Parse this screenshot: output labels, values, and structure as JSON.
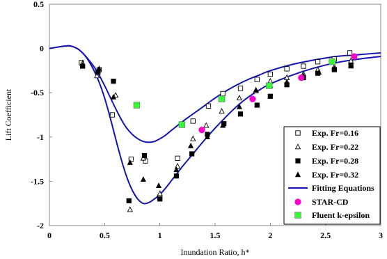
{
  "chart_data": {
    "type": "scatter",
    "title": "",
    "xlabel": "Inundation Ratio, h*",
    "ylabel": "Lift Coefficient",
    "xlim": [
      0,
      3
    ],
    "ylim": [
      -2,
      0.5
    ],
    "xticks": [
      "0",
      "0.5",
      "1",
      "1.5",
      "2",
      "2.5",
      "3"
    ],
    "yticks": [
      "0.5",
      "0",
      "-0.5",
      "-1",
      "-1.5",
      "-2"
    ],
    "grid": false,
    "legend_position": "bottom-right",
    "series": [
      {
        "name": "Exp. Fr=0.16",
        "marker": "square-open",
        "color": "#000000",
        "points": [
          [
            0.29,
            -0.16
          ],
          [
            0.45,
            -0.24
          ],
          [
            0.57,
            -0.75
          ],
          [
            0.74,
            -1.25
          ],
          [
            0.87,
            -1.27
          ],
          [
            1.0,
            -1.68
          ],
          [
            1.16,
            -1.24
          ],
          [
            1.3,
            -0.82
          ],
          [
            1.44,
            -0.65
          ],
          [
            1.57,
            -0.51
          ],
          [
            1.73,
            -0.45
          ],
          [
            1.88,
            -0.35
          ],
          [
            2.0,
            -0.29
          ],
          [
            2.15,
            -0.23
          ],
          [
            2.3,
            -0.2
          ],
          [
            2.43,
            -0.15
          ],
          [
            2.58,
            -0.12
          ],
          [
            2.72,
            -0.05
          ]
        ]
      },
      {
        "name": "Exp. Fr=0.22",
        "marker": "triangle-open",
        "color": "#000000",
        "points": [
          [
            0.3,
            -0.17
          ],
          [
            0.43,
            -0.31
          ],
          [
            0.6,
            -0.53
          ],
          [
            0.73,
            -1.82
          ],
          [
            0.85,
            -1.24
          ],
          [
            1.0,
            -1.64
          ],
          [
            1.16,
            -1.33
          ],
          [
            1.3,
            -1.02
          ],
          [
            1.42,
            -0.87
          ],
          [
            1.56,
            -0.71
          ],
          [
            1.72,
            -0.56
          ],
          [
            1.87,
            -0.48
          ],
          [
            2.0,
            -0.37
          ],
          [
            2.15,
            -0.33
          ],
          [
            2.3,
            -0.29
          ],
          [
            2.43,
            -0.24
          ],
          [
            2.58,
            -0.21
          ],
          [
            2.73,
            -0.14
          ]
        ]
      },
      {
        "name": "Exp. Fr=0.28",
        "marker": "square-filled",
        "color": "#000000",
        "points": [
          [
            0.3,
            -0.2
          ],
          [
            0.44,
            -0.27
          ],
          [
            0.58,
            -0.37
          ],
          [
            0.72,
            -1.72
          ],
          [
            0.86,
            -1.21
          ],
          [
            1.0,
            -1.7
          ],
          [
            1.15,
            -1.44
          ],
          [
            1.29,
            -1.19
          ],
          [
            1.43,
            -0.97
          ],
          [
            1.58,
            -0.85
          ],
          [
            1.73,
            -0.74
          ],
          [
            1.88,
            -0.64
          ],
          [
            2.0,
            -0.54
          ],
          [
            2.15,
            -0.41
          ],
          [
            2.3,
            -0.33
          ],
          [
            2.43,
            -0.28
          ],
          [
            2.58,
            -0.24
          ],
          [
            2.73,
            -0.19
          ]
        ]
      },
      {
        "name": "Exp. Fr=0.32",
        "marker": "triangle-filled",
        "color": "#000000",
        "points": [
          [
            0.3,
            -0.19
          ],
          [
            0.45,
            -0.23
          ],
          [
            0.58,
            -0.55
          ],
          [
            0.73,
            -1.29
          ],
          [
            0.85,
            -1.48
          ],
          [
            0.99,
            -1.55
          ],
          [
            1.15,
            -1.37
          ],
          [
            1.28,
            -1.1
          ],
          [
            1.43,
            -1.0
          ],
          [
            1.57,
            -0.87
          ],
          [
            1.72,
            -0.66
          ],
          [
            1.87,
            -0.47
          ],
          [
            2.0,
            -0.42
          ],
          [
            2.15,
            -0.38
          ],
          [
            2.3,
            -0.31
          ],
          [
            2.44,
            -0.27
          ],
          [
            2.58,
            -0.23
          ],
          [
            2.73,
            -0.2
          ]
        ]
      },
      {
        "name": "STAR-CD",
        "marker": "circle-filled",
        "color": "#ff00cc",
        "points": [
          [
            1.38,
            -0.92
          ],
          [
            1.84,
            -0.57
          ],
          [
            2.28,
            -0.33
          ],
          [
            2.76,
            -0.09
          ]
        ]
      },
      {
        "name": "Fluent k-epsilon",
        "marker": "square-filled-bordered",
        "color": "#33ff33",
        "points": [
          [
            0.79,
            -0.64
          ],
          [
            1.2,
            -0.86
          ],
          [
            1.56,
            -0.57
          ],
          [
            1.99,
            -0.42
          ],
          [
            2.56,
            -0.15
          ]
        ]
      }
    ],
    "fitting_equations": {
      "name": "Fitting Equations",
      "color": "#1414b4",
      "curves": [
        {
          "x": [
            0,
            0.1,
            0.18,
            0.25,
            0.3,
            0.35,
            0.4,
            0.45,
            0.5,
            0.55,
            0.6,
            0.65,
            0.7,
            0.75,
            0.8,
            0.85,
            0.9,
            0.95,
            1.0,
            1.05,
            1.1,
            1.15,
            1.2,
            1.3,
            1.4,
            1.5,
            1.6,
            1.7,
            1.8,
            1.9,
            2.0,
            2.2,
            2.4,
            2.6,
            2.8,
            3.0
          ],
          "y": [
            0,
            0.02,
            0.03,
            0,
            -0.05,
            -0.12,
            -0.2,
            -0.3,
            -0.42,
            -0.55,
            -0.68,
            -0.8,
            -0.9,
            -0.97,
            -1.02,
            -1.05,
            -1.06,
            -1.05,
            -1.02,
            -0.98,
            -0.93,
            -0.88,
            -0.83,
            -0.74,
            -0.65,
            -0.56,
            -0.48,
            -0.41,
            -0.35,
            -0.3,
            -0.25,
            -0.18,
            -0.13,
            -0.09,
            -0.07,
            -0.05
          ]
        },
        {
          "x": [
            0,
            0.1,
            0.18,
            0.25,
            0.3,
            0.35,
            0.4,
            0.45,
            0.5,
            0.55,
            0.6,
            0.65,
            0.7,
            0.75,
            0.8,
            0.85,
            0.9,
            0.95,
            1.0,
            1.05,
            1.1,
            1.15,
            1.2,
            1.3,
            1.4,
            1.5,
            1.6,
            1.7,
            1.8,
            1.9,
            2.0,
            2.2,
            2.4,
            2.6,
            2.8,
            3.0
          ],
          "y": [
            0,
            0.02,
            0.03,
            0,
            -0.05,
            -0.13,
            -0.24,
            -0.38,
            -0.56,
            -0.78,
            -1.02,
            -1.25,
            -1.45,
            -1.6,
            -1.7,
            -1.75,
            -1.74,
            -1.7,
            -1.65,
            -1.58,
            -1.5,
            -1.42,
            -1.34,
            -1.19,
            -1.04,
            -0.9,
            -0.77,
            -0.65,
            -0.55,
            -0.47,
            -0.4,
            -0.3,
            -0.22,
            -0.16,
            -0.12,
            -0.09
          ]
        }
      ]
    }
  }
}
